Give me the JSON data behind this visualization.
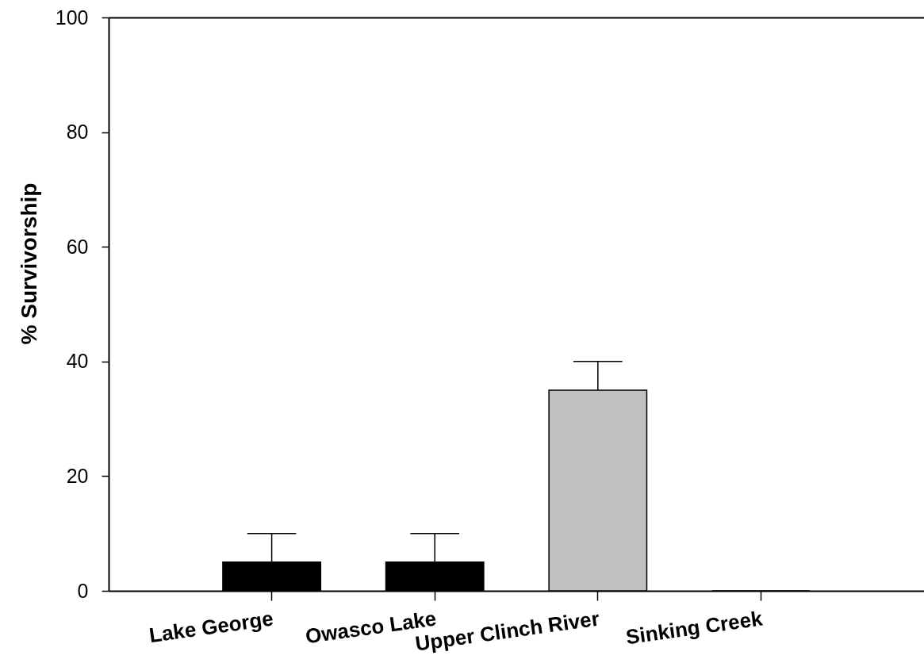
{
  "chart_data": {
    "type": "bar",
    "ylabel": "% Survivorship",
    "categories": [
      "Lake George",
      "Owasco Lake",
      "Upper Clinch River",
      "Sinking Creek"
    ],
    "values": [
      5,
      5,
      35,
      0
    ],
    "colors": [
      "#000000",
      "#000000",
      "#c0c0c0",
      "#000000"
    ],
    "errors": [
      [
        5,
        10
      ],
      [
        5,
        10
      ],
      [
        35,
        40
      ],
      null
    ],
    "ylim": [
      0,
      100
    ],
    "yticks": [
      0,
      20,
      40,
      60,
      80,
      100
    ]
  }
}
